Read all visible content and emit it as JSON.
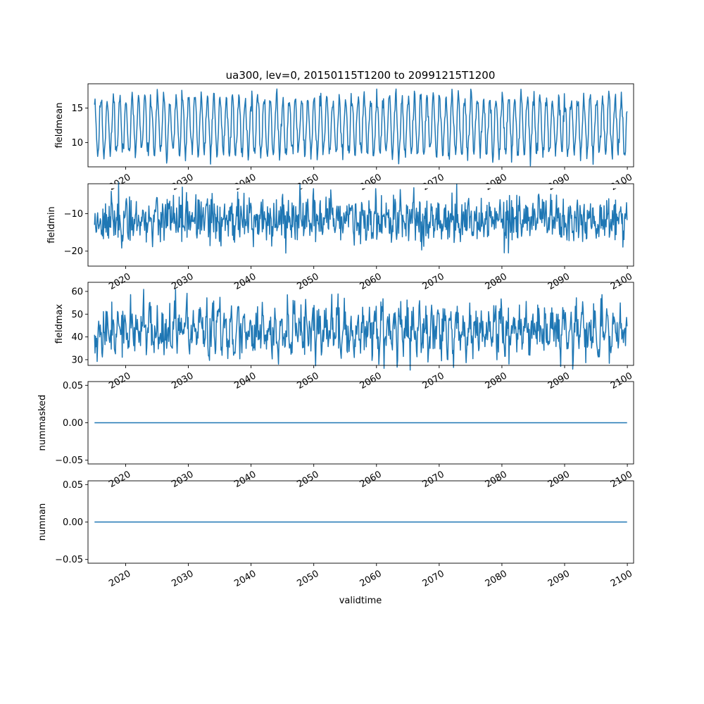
{
  "chart_data": {
    "type": "line",
    "title": "ua300, lev=0, 20150115T1200 to 20991215T1200",
    "xlabel": "validtime",
    "x_start": "2015-01-15",
    "x_end": "2099-12-15",
    "x_step": "monthly",
    "xlim": [
      "2014-01-01",
      "2101-01-01"
    ],
    "x_ticks": [
      "2020",
      "2030",
      "2040",
      "2050",
      "2060",
      "2070",
      "2080",
      "2090",
      "2100"
    ],
    "line_color": "#1f77b4",
    "panels": [
      {
        "ylabel": "fieldmean",
        "ylim": [
          6.5,
          18.5
        ],
        "yticks": [
          10,
          15
        ],
        "ytick_labels": [
          "10",
          "15"
        ],
        "baseline": 12.4,
        "amplitude": 4.0,
        "noise": 0.7,
        "seed": 11,
        "style": "seasonal"
      },
      {
        "ylabel": "fieldmin",
        "ylim": [
          -24,
          -2
        ],
        "yticks": [
          -20,
          -10
        ],
        "ytick_labels": [
          "−20",
          "−10"
        ],
        "baseline": -11.5,
        "amplitude": 1.5,
        "noise": 2.4,
        "seed": 23,
        "style": "noisy"
      },
      {
        "ylabel": "fieldmax",
        "ylim": [
          27.5,
          64
        ],
        "yticks": [
          30,
          40,
          50,
          60
        ],
        "ytick_labels": [
          "30",
          "40",
          "50",
          "60"
        ],
        "baseline": 43,
        "amplitude": 5.5,
        "noise": 4.0,
        "seed": 37,
        "style": "noisy"
      },
      {
        "ylabel": "nummasked",
        "ylim": [
          -0.055,
          0.055
        ],
        "yticks": [
          -0.05,
          0.0,
          0.05
        ],
        "ytick_labels": [
          "−0.05",
          "0.00",
          "0.05"
        ],
        "constant": 0
      },
      {
        "ylabel": "numnan",
        "ylim": [
          -0.055,
          0.055
        ],
        "yticks": [
          -0.05,
          0.0,
          0.05
        ],
        "ytick_labels": [
          "−0.05",
          "0.00",
          "0.05"
        ],
        "constant": 0
      }
    ]
  }
}
